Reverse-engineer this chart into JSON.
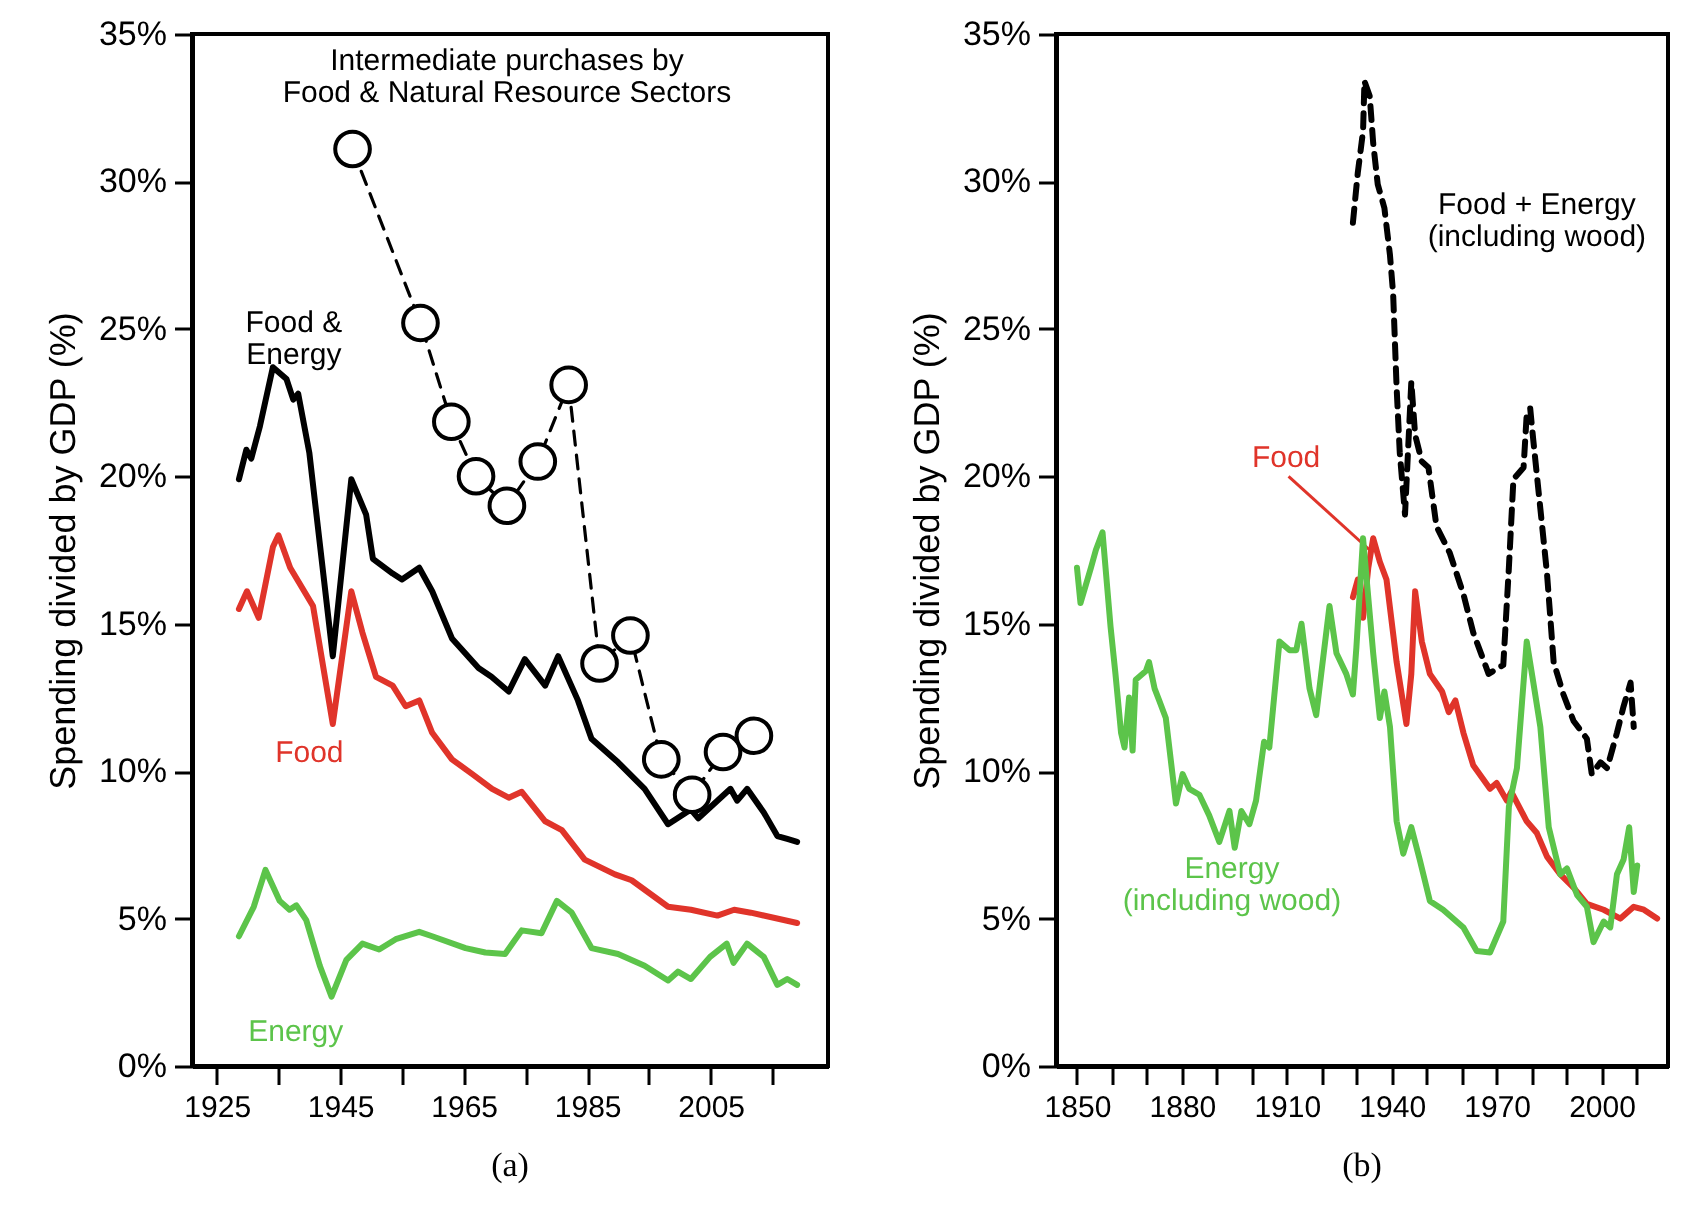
{
  "chart_data": [
    {
      "type": "line",
      "title": "(a)",
      "ylabel": "Spending divided by GDP (%)",
      "xlim": [
        1921,
        2024
      ],
      "ylim": [
        0,
        35
      ],
      "xticks": [
        1925,
        {
          "value": 1935,
          "label": null
        },
        1945,
        {
          "value": 1955,
          "label": null
        },
        1965,
        {
          "value": 1975,
          "label": null
        },
        1985,
        {
          "value": 1995,
          "label": null
        },
        2005,
        {
          "value": 2015,
          "label": null
        }
      ],
      "yticks": [
        {
          "value": 0,
          "label": "0%"
        },
        {
          "value": 5,
          "label": "5%"
        },
        {
          "value": 10,
          "label": "10%"
        },
        {
          "value": 15,
          "label": "15%"
        },
        {
          "value": 20,
          "label": "20%"
        },
        {
          "value": 25,
          "label": "25%"
        },
        {
          "value": 30,
          "label": "30%"
        },
        {
          "value": 35,
          "label": "35%"
        }
      ],
      "series": [
        {
          "name": "Food &\nEnergy",
          "color": "#000000",
          "line_style": "solid",
          "marker": "none",
          "x": [
            1928.6,
            1929.8,
            1930.6,
            1932,
            1934.1,
            1936.3,
            1937.4,
            1938.2,
            1940,
            1943.8,
            1946.8,
            1949.2,
            1950.3,
            1953.5,
            1955,
            1957.8,
            1959.9,
            1963.1,
            1967.4,
            1969.5,
            1972.3,
            1974.9,
            1978.2,
            1980.3,
            1983.5,
            1985.7,
            1990,
            1994.3,
            1998.1,
            2001.8,
            2003,
            2008.2,
            2009.3,
            2010.9,
            2013.6,
            2015.8,
            2017.4,
            2019
          ],
          "values": [
            19.9,
            20.9,
            20.6,
            21.7,
            23.7,
            23.3,
            22.6,
            22.8,
            20.8,
            13.9,
            19.9,
            18.7,
            17.2,
            16.7,
            16.5,
            16.9,
            16.1,
            14.5,
            13.5,
            13.2,
            12.7,
            13.8,
            12.9,
            13.9,
            12.4,
            11.1,
            10.3,
            9.4,
            8.2,
            8.7,
            8.4,
            9.4,
            9,
            9.4,
            8.6,
            7.8,
            7.7,
            7.6
          ]
        },
        {
          "name": "Food",
          "color": "#e0342a",
          "line_style": "solid",
          "marker": "none",
          "x": [
            1928.6,
            1929.9,
            1931.8,
            1934.1,
            1935,
            1936.9,
            1940.6,
            1943.8,
            1946.8,
            1948.6,
            1950.8,
            1953.5,
            1955.6,
            1957.8,
            1959.9,
            1963.1,
            1966.4,
            1969.6,
            1972.3,
            1974.4,
            1978.2,
            1980.9,
            1984.6,
            1989.5,
            1992.2,
            1998.1,
            2001.8,
            2006.1,
            2008.8,
            2011.5,
            2019
          ],
          "values": [
            15.5,
            16.1,
            15.2,
            17.6,
            18,
            16.9,
            15.6,
            11.6,
            16.1,
            14.7,
            13.2,
            12.9,
            12.2,
            12.4,
            11.3,
            10.4,
            9.9,
            9.4,
            9.1,
            9.3,
            8.3,
            8,
            7,
            6.5,
            6.3,
            5.4,
            5.3,
            5.1,
            5.3,
            5.2,
            4.85
          ]
        },
        {
          "name": "Energy",
          "color": "#5cc44a",
          "line_style": "solid",
          "marker": "none",
          "x": [
            1928.6,
            1931,
            1932.9,
            1935.2,
            1936.8,
            1937.9,
            1939.5,
            1941.7,
            1943.6,
            1946,
            1948.6,
            1951.3,
            1954,
            1957.8,
            1959.9,
            1965.3,
            1968.5,
            1971.7,
            1974.4,
            1977.6,
            1980.1,
            1982.5,
            1985.7,
            1990,
            1994.3,
            1998.1,
            1999.7,
            2001.8,
            2004.9,
            2007.6,
            2008.7,
            2010.9,
            2013.6,
            2015.8,
            2017.4,
            2019
          ],
          "values": [
            4.4,
            5.4,
            6.65,
            5.6,
            5.3,
            5.45,
            4.95,
            3.4,
            2.35,
            3.6,
            4.15,
            3.95,
            4.3,
            4.55,
            4.4,
            4,
            3.85,
            3.8,
            4.6,
            4.5,
            5.6,
            5.2,
            4,
            3.8,
            3.4,
            2.9,
            3.2,
            2.95,
            3.7,
            4.15,
            3.5,
            4.15,
            3.7,
            2.75,
            2.95,
            2.75
          ]
        },
        {
          "name": "Intermediate purchases by\nFood & Natural Resource Sectors",
          "color": "#000000",
          "line_style": "dashed",
          "marker": "circle",
          "x": [
            1947,
            1958,
            1963,
            1967,
            1972,
            1977,
            1982,
            1987,
            1992,
            1997,
            2002,
            2007,
            2012
          ],
          "values": [
            31.1,
            25.2,
            21.85,
            20,
            19,
            20.5,
            23.1,
            13.65,
            14.6,
            10.4,
            9.2,
            10.65,
            11.2
          ]
        }
      ]
    },
    {
      "type": "line",
      "title": "(b)",
      "ylabel": "Spending divided by GDP (%)",
      "xlim": [
        1844,
        2019
      ],
      "ylim": [
        0,
        35
      ],
      "xticks": [
        1850,
        {
          "value": 1860,
          "label": null
        },
        {
          "value": 1870,
          "label": null
        },
        1880,
        {
          "value": 1890,
          "label": null
        },
        {
          "value": 1900,
          "label": null
        },
        1910,
        {
          "value": 1920,
          "label": null
        },
        {
          "value": 1930,
          "label": null
        },
        1940,
        {
          "value": 1950,
          "label": null
        },
        {
          "value": 1960,
          "label": null
        },
        1970,
        {
          "value": 1980,
          "label": null
        },
        {
          "value": 1990,
          "label": null
        },
        2000,
        {
          "value": 2010,
          "label": null
        }
      ],
      "yticks": [
        {
          "value": 0,
          "label": "0%"
        },
        {
          "value": 5,
          "label": "5%"
        },
        {
          "value": 10,
          "label": "10%"
        },
        {
          "value": 15,
          "label": "15%"
        },
        {
          "value": 20,
          "label": "20%"
        },
        {
          "value": 25,
          "label": "25%"
        },
        {
          "value": 30,
          "label": "30%"
        },
        {
          "value": 35,
          "label": "35%"
        }
      ],
      "series": [
        {
          "name": "Food + Energy\n(including wood)",
          "color": "#000000",
          "line_style": "dashed",
          "marker": "none",
          "x": [
            1928.9,
            1930.3,
            1931.8,
            1932.2,
            1933.7,
            1934.7,
            1936,
            1937.9,
            1939.5,
            1940.4,
            1941.4,
            1942.3,
            1943.8,
            1945.6,
            1946.7,
            1948.6,
            1950.5,
            1952.8,
            1956.6,
            1960.5,
            1963.3,
            1967.7,
            1971.9,
            1973.5,
            1974.8,
            1977.7,
            1978.6,
            1979.6,
            1980.5,
            1982.5,
            1983.8,
            1984.4,
            1986.3,
            1989.1,
            1992,
            1995.8,
            1997.2,
            1999.7,
            2001.6,
            2004.4,
            2006.3,
            2008.3,
            2009.2
          ],
          "values": [
            28.6,
            30.3,
            31.7,
            33.4,
            32.9,
            31.3,
            29.9,
            29.1,
            27.5,
            26.2,
            23,
            20.8,
            18.7,
            23.2,
            21.4,
            20.5,
            20.3,
            18.3,
            17.4,
            16,
            14.7,
            13.3,
            13.6,
            16.9,
            19.9,
            20.3,
            22.1,
            22.3,
            21.2,
            18.9,
            17.4,
            16.7,
            13.7,
            12.6,
            11.7,
            11.1,
            9.9,
            10.3,
            10.1,
            11.3,
            12.2,
            13,
            11.5
          ]
        },
        {
          "name": "Food",
          "color": "#e0342a",
          "line_style": "solid",
          "marker": "none",
          "x": [
            1928.9,
            1930.3,
            1931.8,
            1933.3,
            1934.7,
            1936.6,
            1938.5,
            1941.4,
            1944.2,
            1945.6,
            1946.7,
            1948.6,
            1950.9,
            1954.4,
            1956.3,
            1958.2,
            1960.5,
            1963.3,
            1968.1,
            1970,
            1972.9,
            1974.2,
            1978.6,
            1981.5,
            1984.4,
            1988.2,
            1992,
            1995.8,
            2000.6,
            2005.4,
            2009.2,
            2012.1,
            2015.9
          ],
          "values": [
            15.9,
            16.5,
            15.2,
            16.9,
            17.9,
            17.1,
            16.5,
            13.7,
            11.6,
            13.3,
            16.1,
            14.4,
            13.3,
            12.7,
            12,
            12.4,
            11.3,
            10.2,
            9.4,
            9.6,
            9,
            9.3,
            8.3,
            7.9,
            7.1,
            6.5,
            6.05,
            5.5,
            5.3,
            5,
            5.4,
            5.3,
            5
          ]
        },
        {
          "name": "Energy\n(including wood)",
          "color": "#5cc44a",
          "line_style": "solid",
          "marker": "none",
          "x": [
            1850,
            1851,
            1854,
            1855.4,
            1857.3,
            1859.6,
            1861,
            1862.6,
            1863.6,
            1864.9,
            1865.9,
            1866.8,
            1869.7,
            1870.6,
            1872.2,
            1873.5,
            1875.4,
            1878.3,
            1880.2,
            1882.1,
            1885,
            1887.8,
            1890.7,
            1893.6,
            1895.1,
            1897,
            1899.3,
            1901.2,
            1903.5,
            1905,
            1907.9,
            1910.8,
            1912.7,
            1914.2,
            1916.5,
            1918.4,
            1922.2,
            1924.2,
            1927,
            1928.9,
            1929.9,
            1931.8,
            1934.7,
            1936.6,
            1937.9,
            1939.5,
            1941.4,
            1943.3,
            1945.6,
            1948,
            1950.9,
            1954.7,
            1960.5,
            1964.3,
            1968.1,
            1971.9,
            1973.5,
            1975.8,
            1978.6,
            1980.5,
            1982.5,
            1984.9,
            1988.2,
            1990.1,
            1993,
            1995.8,
            1997.7,
            2000.6,
            2002.5,
            2004.4,
            2006.3,
            2007.9,
            2009.2,
            2010.2
          ],
          "values": [
            16.9,
            15.7,
            16.9,
            17.5,
            18.1,
            14.9,
            13.3,
            11.3,
            10.8,
            12.5,
            10.7,
            13.1,
            13.4,
            13.7,
            12.8,
            12.4,
            11.8,
            8.9,
            9.9,
            9.4,
            9.2,
            8.5,
            7.6,
            8.65,
            7.4,
            8.65,
            8.2,
            9,
            11,
            10.8,
            14.4,
            14.1,
            14.1,
            15,
            12.8,
            11.9,
            15.6,
            14,
            13.3,
            12.6,
            14.2,
            17.9,
            14,
            11.8,
            12.7,
            11.5,
            8.3,
            7.2,
            8.1,
            7,
            5.6,
            5.3,
            4.7,
            3.9,
            3.85,
            4.9,
            8.8,
            10.1,
            14.4,
            13,
            11.5,
            8.1,
            6.5,
            6.7,
            5.8,
            5.4,
            4.2,
            4.9,
            4.7,
            6.5,
            7,
            8.1,
            5.9,
            6.8
          ]
        }
      ]
    }
  ]
}
